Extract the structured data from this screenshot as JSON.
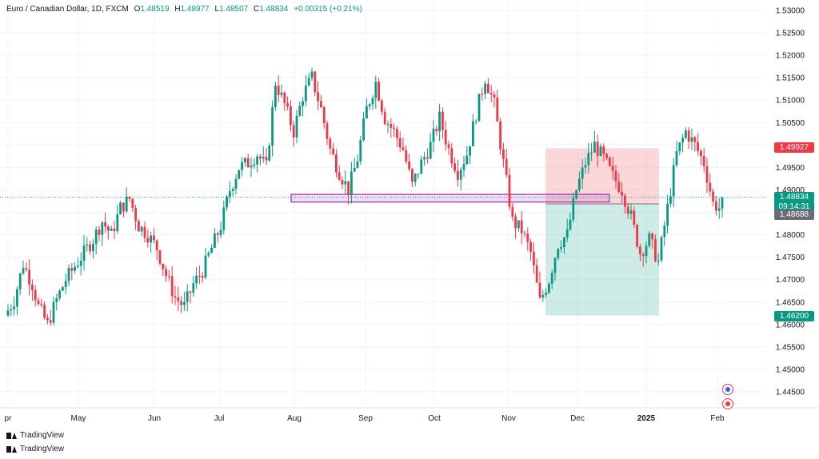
{
  "header": {
    "symbol": "Euro / Canadian Dollar, 1D, FXCM",
    "open_label": "O",
    "open": "1.48519",
    "high_label": "H",
    "high": "1.48977",
    "low_label": "L",
    "low": "1.48507",
    "close_label": "C",
    "close": "1.48834",
    "change": "+0.00315 (+0.21%)"
  },
  "price_tags": {
    "stop": "1.49927",
    "current": "1.48834",
    "countdown": "09:14:31",
    "entry": "1.48688",
    "target": "1.46200"
  },
  "brand": {
    "name": "TradingView"
  },
  "colors": {
    "up": "#089981",
    "down": "#f23645",
    "zone": "#9c27b0",
    "grid": "#f0f3fa"
  },
  "icons": [
    "tradingview-logo-icon",
    "economic-event-icon",
    "flag-event-icon"
  ],
  "chart_data": {
    "type": "candlestick",
    "x_ticks": [
      "pr",
      "May",
      "Jun",
      "Jul",
      "Aug",
      "Sep",
      "Oct",
      "Nov",
      "Dec",
      "2025",
      "Feb"
    ],
    "y_ticks": [
      "1.53000",
      "1.52500",
      "1.52000",
      "1.51500",
      "1.51000",
      "1.50500",
      "1.50000",
      "1.49500",
      "1.49000",
      "1.48500",
      "1.48000",
      "1.47500",
      "1.47000",
      "1.46500",
      "1.46000",
      "1.45500",
      "1.45000",
      "1.44500"
    ],
    "ylim": [
      1.4425,
      1.5315
    ],
    "current_price": 1.48834,
    "position": {
      "type": "short",
      "entry": 1.48688,
      "stop": 1.49927,
      "target": 1.462
    },
    "zone": {
      "top": 1.489,
      "bottom": 1.4873
    },
    "anchors": [
      [
        0,
        1.462
      ],
      [
        3,
        1.4655
      ],
      [
        6,
        1.4735
      ],
      [
        9,
        1.469
      ],
      [
        11,
        1.464
      ],
      [
        14,
        1.46
      ],
      [
        17,
        1.4655
      ],
      [
        20,
        1.47
      ],
      [
        23,
        1.473
      ],
      [
        26,
        1.476
      ],
      [
        29,
        1.479
      ],
      [
        32,
        1.483
      ],
      [
        35,
        1.48
      ],
      [
        38,
        1.486
      ],
      [
        41,
        1.488
      ],
      [
        44,
        1.482
      ],
      [
        47,
        1.48
      ],
      [
        50,
        1.477
      ],
      [
        53,
        1.471
      ],
      [
        56,
        1.466
      ],
      [
        59,
        1.464
      ],
      [
        62,
        1.469
      ],
      [
        65,
        1.472
      ],
      [
        68,
        1.477
      ],
      [
        71,
        1.482
      ],
      [
        74,
        1.49
      ],
      [
        77,
        1.495
      ],
      [
        80,
        1.496
      ],
      [
        83,
        1.498
      ],
      [
        86,
        1.495
      ],
      [
        89,
        1.514
      ],
      [
        92,
        1.509
      ],
      [
        95,
        1.503
      ],
      [
        98,
        1.511
      ],
      [
        101,
        1.515
      ],
      [
        104,
        1.508
      ],
      [
        107,
        1.499
      ],
      [
        110,
        1.494
      ],
      [
        113,
        1.49
      ],
      [
        116,
        1.497
      ],
      [
        119,
        1.508
      ],
      [
        122,
        1.514
      ],
      [
        125,
        1.506
      ],
      [
        128,
        1.503
      ],
      [
        131,
        1.499
      ],
      [
        134,
        1.491
      ],
      [
        137,
        1.496
      ],
      [
        140,
        1.5
      ],
      [
        143,
        1.506
      ],
      [
        146,
        1.499
      ],
      [
        149,
        1.494
      ],
      [
        152,
        1.498
      ],
      [
        155,
        1.507
      ],
      [
        158,
        1.515
      ],
      [
        161,
        1.509
      ],
      [
        164,
        1.496
      ],
      [
        167,
        1.483
      ],
      [
        170,
        1.481
      ],
      [
        173,
        1.476
      ],
      [
        176,
        1.465
      ],
      [
        179,
        1.47
      ],
      [
        182,
        1.478
      ],
      [
        185,
        1.48
      ],
      [
        188,
        1.49
      ],
      [
        191,
        1.496
      ],
      [
        194,
        1.5
      ],
      [
        197,
        1.497
      ],
      [
        200,
        1.493
      ],
      [
        203,
        1.49
      ],
      [
        206,
        1.484
      ],
      [
        209,
        1.476
      ],
      [
        212,
        1.479
      ],
      [
        215,
        1.474
      ],
      [
        218,
        1.486
      ],
      [
        221,
        1.498
      ],
      [
        224,
        1.503
      ],
      [
        227,
        1.5
      ],
      [
        230,
        1.496
      ],
      [
        233,
        1.487
      ],
      [
        235,
        1.486
      ]
    ]
  }
}
